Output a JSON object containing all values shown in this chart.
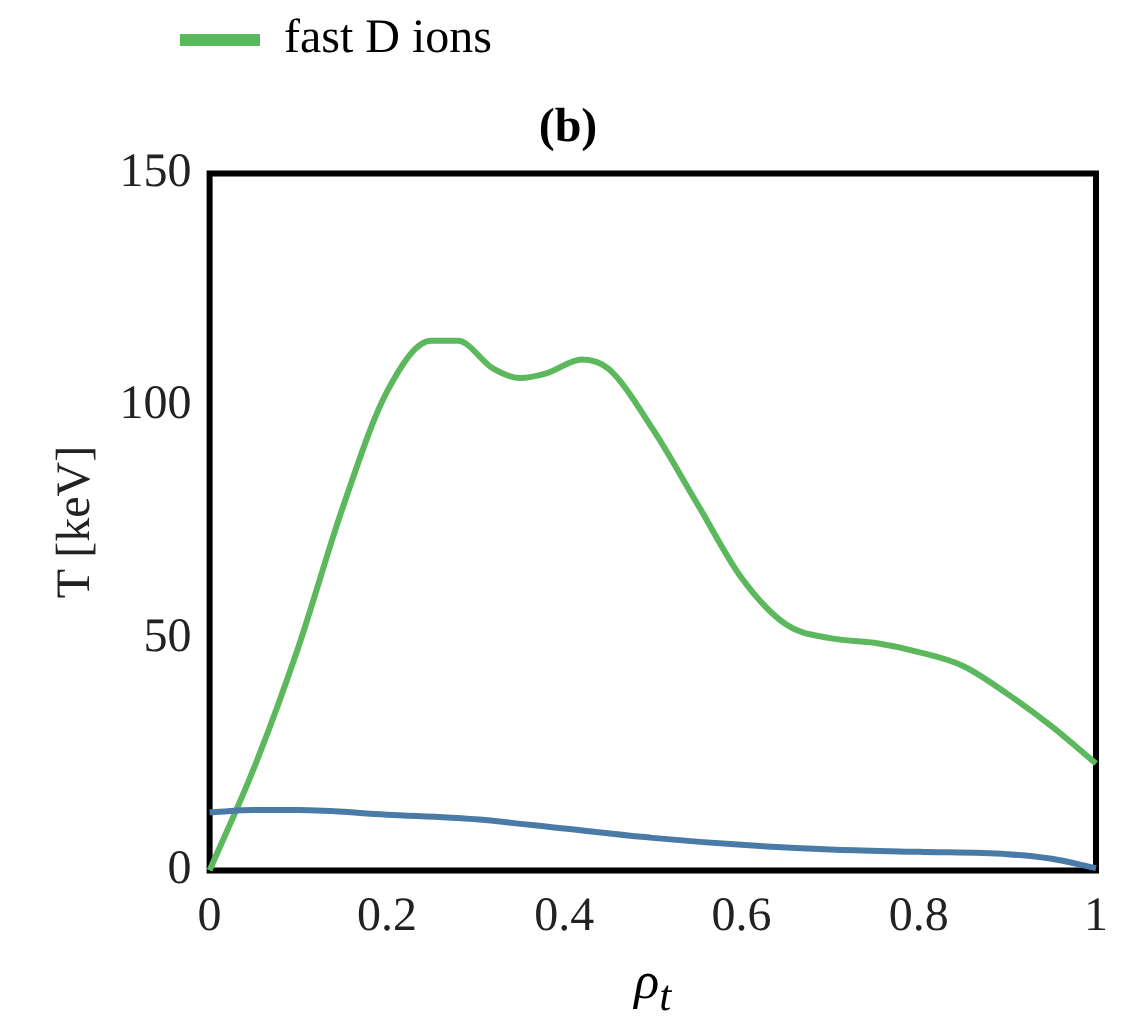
{
  "chart_data": {
    "type": "line",
    "title": "(b)",
    "xlabel": "ρ$_{t}$",
    "ylabel": "T [keV]",
    "xlim": [
      0,
      1
    ],
    "xticks": [
      0,
      0.2,
      0.4,
      0.6,
      0.8,
      1
    ],
    "ylim": [
      0,
      150
    ],
    "yticks": [
      0,
      50,
      100,
      150
    ],
    "grid": false,
    "legend": "top left",
    "marker": "none",
    "line_style": "solid",
    "series": [
      {
        "color": "#4a7ba6",
        "x": [
          0,
          0.05,
          0.1,
          0.2,
          0.3,
          0.4,
          0.5,
          0.6,
          0.7,
          0.8,
          0.9,
          0.95,
          1
        ],
        "values": [
          12.5,
          13,
          13,
          12,
          11,
          9,
          7,
          5.5,
          4.5,
          4,
          3.5,
          2.5,
          0.5
        ]
      },
      {
        "name": "fast D ions",
        "color": "#5cb85c",
        "x": [
          0,
          0.05,
          0.1,
          0.15,
          0.2,
          0.25,
          0.28,
          0.32,
          0.35,
          0.38,
          0.42,
          0.45,
          0.5,
          0.55,
          0.6,
          0.65,
          0.7,
          0.75,
          0.8,
          0.85,
          0.9,
          0.95,
          1
        ],
        "values": [
          0,
          22,
          48,
          78,
          103,
          114,
          114,
          108,
          106,
          107,
          110,
          108,
          95,
          79,
          63,
          53,
          50,
          49,
          47,
          44,
          38,
          31,
          23
        ]
      }
    ]
  }
}
